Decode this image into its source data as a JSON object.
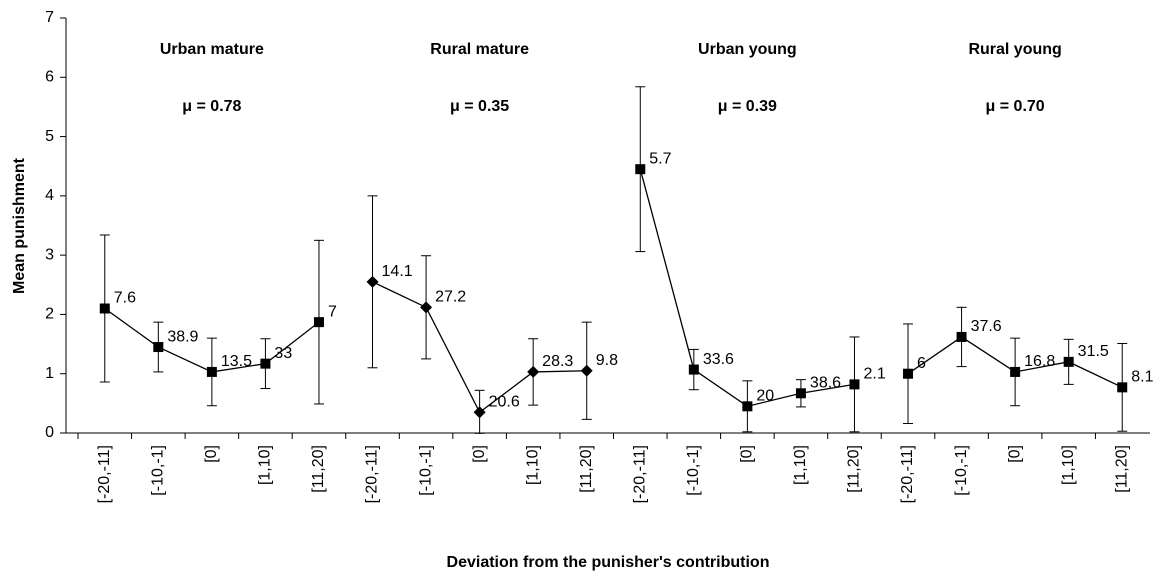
{
  "chart_data": {
    "type": "line",
    "x_label": "Deviation from the punisher's contribution",
    "y_label": "Mean punishment",
    "categories": [
      "[-20,-11]",
      "[-10,-1]",
      "[0]",
      "[1,10]",
      "[11,20]",
      "[-20,-11]",
      "[-10,-1]",
      "[0]",
      "[1,10]",
      "[11,20]",
      "[-20,-11]",
      "[-10,-1]",
      "[0]",
      "[1,10]",
      "[11,20]",
      "[-20,-11]",
      "[-10,-1]",
      "[0]",
      "[1,10]",
      "[11,20]"
    ],
    "ylim": [
      0,
      7
    ],
    "yticks": [
      0,
      1,
      2,
      3,
      4,
      5,
      6,
      7
    ],
    "color": "#000000",
    "series": [
      {
        "name": "Urban mature",
        "annotation": "μ = 0.78",
        "marker": "square",
        "values": [
          2.1,
          1.45,
          1.03,
          1.17,
          1.87,
          null,
          null,
          null,
          null,
          null,
          null,
          null,
          null,
          null,
          null,
          null,
          null,
          null,
          null,
          null
        ],
        "errors": [
          1.24,
          0.42,
          0.57,
          0.42,
          1.38,
          null,
          null,
          null,
          null,
          null,
          null,
          null,
          null,
          null,
          null,
          null,
          null,
          null,
          null,
          null
        ],
        "point_labels": [
          "7.6",
          "38.9",
          "13.5",
          "33",
          "7",
          null,
          null,
          null,
          null,
          null,
          null,
          null,
          null,
          null,
          null,
          null,
          null,
          null,
          null,
          null
        ]
      },
      {
        "name": "Rural mature",
        "annotation": "μ = 0.35",
        "marker": "diamond",
        "values": [
          null,
          null,
          null,
          null,
          null,
          2.55,
          2.12,
          0.35,
          1.03,
          1.05,
          null,
          null,
          null,
          null,
          null,
          null,
          null,
          null,
          null,
          null
        ],
        "errors": [
          null,
          null,
          null,
          null,
          null,
          1.45,
          0.87,
          0.37,
          0.56,
          0.82,
          null,
          null,
          null,
          null,
          null,
          null,
          null,
          null,
          null,
          null
        ],
        "point_labels": [
          null,
          null,
          null,
          null,
          null,
          "14.1",
          "27.2",
          "20.6",
          "28.3",
          "9.8",
          null,
          null,
          null,
          null,
          null,
          null,
          null,
          null,
          null,
          null
        ]
      },
      {
        "name": "Urban young",
        "annotation": "μ = 0.39",
        "marker": "square",
        "values": [
          null,
          null,
          null,
          null,
          null,
          null,
          null,
          null,
          null,
          null,
          4.45,
          1.07,
          0.45,
          0.67,
          0.82,
          null,
          null,
          null,
          null,
          null
        ],
        "errors": [
          null,
          null,
          null,
          null,
          null,
          null,
          null,
          null,
          null,
          null,
          1.39,
          0.34,
          0.43,
          0.23,
          0.8,
          null,
          null,
          null,
          null,
          null
        ],
        "point_labels": [
          null,
          null,
          null,
          null,
          null,
          null,
          null,
          null,
          null,
          null,
          "5.7",
          "33.6",
          "20",
          "38.6",
          "2.1",
          null,
          null,
          null,
          null,
          null
        ]
      },
      {
        "name": "Rural young",
        "annotation": "μ = 0.70",
        "marker": "square",
        "values": [
          null,
          null,
          null,
          null,
          null,
          null,
          null,
          null,
          null,
          null,
          null,
          null,
          null,
          null,
          null,
          1.0,
          1.62,
          1.03,
          1.2,
          0.77
        ],
        "errors": [
          null,
          null,
          null,
          null,
          null,
          null,
          null,
          null,
          null,
          null,
          null,
          null,
          null,
          null,
          null,
          0.84,
          0.5,
          0.57,
          0.38,
          0.74
        ],
        "point_labels": [
          null,
          null,
          null,
          null,
          null,
          null,
          null,
          null,
          null,
          null,
          null,
          null,
          null,
          null,
          null,
          "6",
          "37.6",
          "16.8",
          "31.5",
          "8.1"
        ]
      }
    ]
  }
}
